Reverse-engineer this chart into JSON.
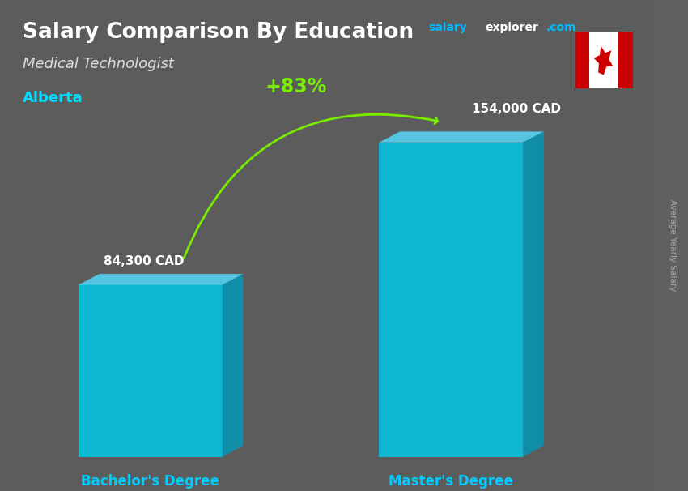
{
  "title": "Salary Comparison By Education",
  "subtitle": "Medical Technologist",
  "location": "Alberta",
  "categories": [
    "Bachelor's Degree",
    "Master's Degree"
  ],
  "values": [
    84300,
    154000
  ],
  "labels": [
    "84,300 CAD",
    "154,000 CAD"
  ],
  "pct_change": "+83%",
  "bar_color_face": "#00CCEE",
  "bar_color_top": "#55DDFF",
  "bar_color_side": "#0099BB",
  "bar_alpha": 0.82,
  "title_color": "#FFFFFF",
  "subtitle_color": "#DDDDDD",
  "location_color": "#00DDFF",
  "label_color": "#FFFFFF",
  "xlabel_color": "#00CCFF",
  "arrow_color": "#77EE00",
  "pct_color": "#77EE00",
  "bg_color": "#606060",
  "site_color1": "#00BBFF",
  "site_color2": "#FFFFFF",
  "ylabel_rotated": "Average Yearly Salary",
  "ylabel_color": "#AAAAAA"
}
